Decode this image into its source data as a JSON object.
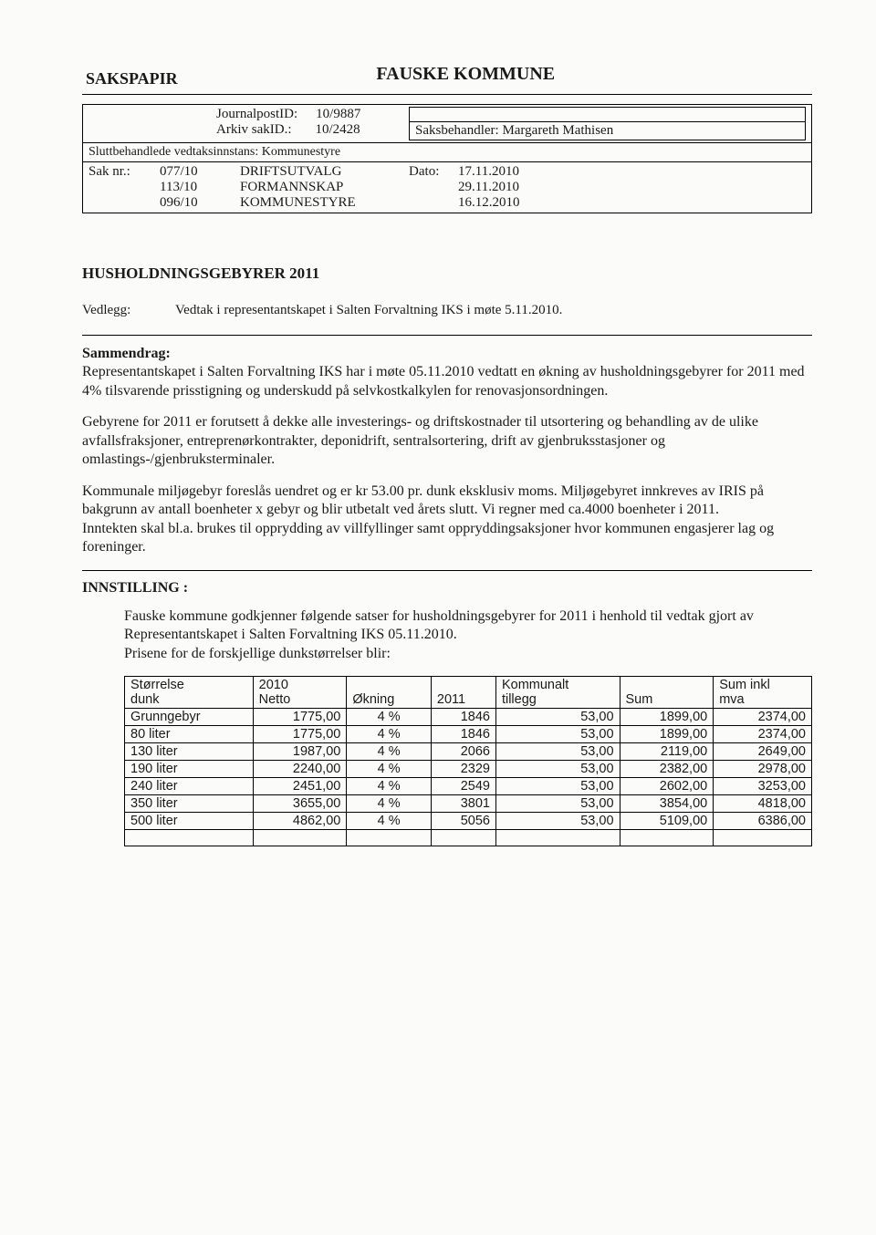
{
  "header": {
    "sakspapir": "SAKSPAPIR",
    "kommune": "FAUSKE KOMMUNE"
  },
  "meta": {
    "journalpost_label": "JournalpostID:",
    "journalpost_value": "10/9887",
    "arkiv_label": "Arkiv sakID.:",
    "arkiv_value": "10/2428",
    "saksbehandler_label": "Saksbehandler:",
    "saksbehandler_value": "Margareth Mathisen",
    "sluttbehandlede": "Sluttbehandlede vedtaksinnstans: Kommunestyre",
    "saknr_label": "Sak nr.:",
    "sak_rows": [
      {
        "nr": "077/10",
        "body": "DRIFTSUTVALG",
        "date": "17.11.2010"
      },
      {
        "nr": "113/10",
        "body": "FORMANNSKAP",
        "date": "29.11.2010"
      },
      {
        "nr": "096/10",
        "body": "KOMMUNESTYRE",
        "date": "16.12.2010"
      }
    ],
    "dato_label": "Dato:"
  },
  "title": "HUSHOLDNINGSGEBYRER 2011",
  "vedlegg": {
    "label": "Vedlegg:",
    "text": "Vedtak i representantskapet i Salten Forvaltning IKS i møte 5.11.2010."
  },
  "sammendrag": {
    "heading": "Sammendrag:",
    "p1": "Representantskapet i Salten Forvaltning IKS har i møte 05.11.2010 vedtatt en økning av husholdningsgebyrer for 2011 med 4% tilsvarende prisstigning og underskudd på selvkostkalkylen for renovasjonsordningen.",
    "p2": "Gebyrene for 2011 er forutsett å dekke alle investerings- og driftskostnader til utsortering og behandling av de ulike avfallsfraksjoner, entreprenørkontrakter, deponidrift, sentralsortering, drift av gjenbruksstasjoner og omlastings-/gjenbruksterminaler.",
    "p3": "Kommunale miljøgebyr foreslås uendret og er kr 53.00 pr. dunk eksklusiv moms. Miljøgebyret innkreves av IRIS på bakgrunn av antall boenheter x gebyr og blir utbetalt ved årets slutt. Vi regner med ca.4000 boenheter i 2011.",
    "p4": "Inntekten skal bl.a. brukes til opprydding av villfyllinger samt oppryddingsaksjoner hvor kommunen engasjerer lag og foreninger."
  },
  "innstilling": {
    "heading": "INNSTILLING :",
    "p1": "Fauske kommune godkjenner følgende satser for husholdningsgebyrer for 2011 i henhold til vedtak gjort av Representantskapet i Salten Forvaltning IKS 05.11.2010.",
    "p2": "Prisene for de forskjellige dunkstørrelser blir:"
  },
  "pricing": {
    "columns": [
      "Størrelse dunk",
      "2010 Netto",
      "Økning",
      "2011",
      "Kommunalt tillegg",
      "Sum",
      "Sum inkl mva"
    ],
    "col_head_lines": {
      "c0a": "Størrelse",
      "c0b": "dunk",
      "c1a": "2010",
      "c1b": "Netto",
      "c2": "Økning",
      "c3": "2011",
      "c4a": "Kommunalt",
      "c4b": "tillegg",
      "c5": "Sum",
      "c6a": "Sum inkl",
      "c6b": "mva"
    },
    "rows": [
      {
        "size": "Grunngebyr",
        "netto": "1775,00",
        "okning": "4 %",
        "y2011": "1846",
        "tillegg": "53,00",
        "sum": "1899,00",
        "inkl": "2374,00"
      },
      {
        "size": "80 liter",
        "netto": "1775,00",
        "okning": "4 %",
        "y2011": "1846",
        "tillegg": "53,00",
        "sum": "1899,00",
        "inkl": "2374,00"
      },
      {
        "size": "130 liter",
        "netto": "1987,00",
        "okning": "4 %",
        "y2011": "2066",
        "tillegg": "53,00",
        "sum": "2119,00",
        "inkl": "2649,00"
      },
      {
        "size": "190 liter",
        "netto": "2240,00",
        "okning": "4 %",
        "y2011": "2329",
        "tillegg": "53,00",
        "sum": "2382,00",
        "inkl": "2978,00"
      },
      {
        "size": "240 liter",
        "netto": "2451,00",
        "okning": "4 %",
        "y2011": "2549",
        "tillegg": "53,00",
        "sum": "2602,00",
        "inkl": "3253,00"
      },
      {
        "size": "350 liter",
        "netto": "3655,00",
        "okning": "4 %",
        "y2011": "3801",
        "tillegg": "53,00",
        "sum": "3854,00",
        "inkl": "4818,00"
      },
      {
        "size": "500 liter",
        "netto": "4862,00",
        "okning": "4 %",
        "y2011": "5056",
        "tillegg": "53,00",
        "sum": "5109,00",
        "inkl": "6386,00"
      }
    ]
  }
}
